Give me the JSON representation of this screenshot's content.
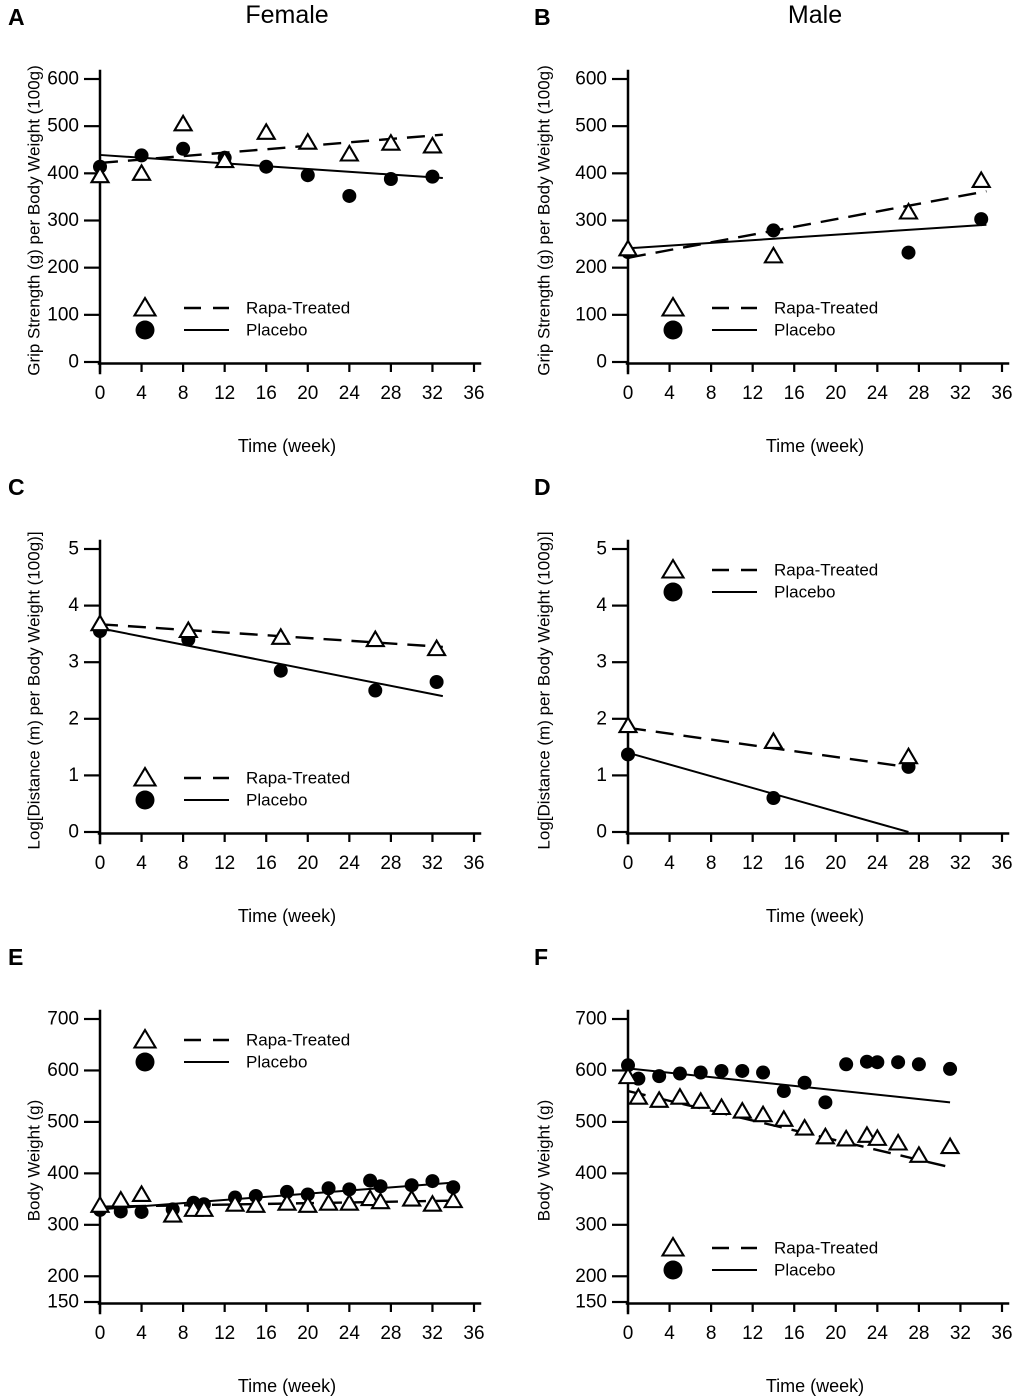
{
  "figure": {
    "background": "#ffffff",
    "foreground": "#000000",
    "column_titles": [
      "Female",
      "Male"
    ],
    "legend_labels": [
      "Rapa-Treated",
      "Placebo"
    ]
  },
  "chart_data": [
    {
      "panel": "A",
      "column_title": "Female",
      "type": "scatter",
      "xlabel": "Time (week)",
      "ylabel": "Grip Strength (g) per Body Weight (100g)",
      "xlim": [
        0,
        36
      ],
      "ylim": [
        0,
        600
      ],
      "xticks": [
        0,
        4,
        8,
        12,
        16,
        20,
        24,
        28,
        32,
        36
      ],
      "yticks": [
        0,
        100,
        200,
        300,
        400,
        500,
        600
      ],
      "grid": false,
      "legend_position": "bottom-left",
      "series": [
        {
          "name": "Rapa-Treated",
          "marker": "triangle",
          "line": "dashed",
          "points": [
            [
              0,
              395
            ],
            [
              4,
              400
            ],
            [
              8,
              505
            ],
            [
              12,
              427
            ],
            [
              16,
              487
            ],
            [
              20,
              466
            ],
            [
              24,
              441
            ],
            [
              28,
              464
            ],
            [
              32,
              458
            ]
          ],
          "trend": [
            [
              0,
              422
            ],
            [
              33,
              482
            ]
          ]
        },
        {
          "name": "Placebo",
          "marker": "circle",
          "line": "solid",
          "points": [
            [
              0,
              414
            ],
            [
              4,
              438
            ],
            [
              8,
              452
            ],
            [
              12,
              433
            ],
            [
              16,
              414
            ],
            [
              20,
              396
            ],
            [
              24,
              352
            ],
            [
              28,
              388
            ],
            [
              32,
              393
            ]
          ],
          "trend": [
            [
              0,
              439
            ],
            [
              33,
              390
            ]
          ]
        }
      ]
    },
    {
      "panel": "B",
      "column_title": "Male",
      "type": "scatter",
      "xlabel": "Time (week)",
      "ylabel": "Grip Strength (g) per Body Weight (100g)",
      "xlim": [
        0,
        36
      ],
      "ylim": [
        0,
        600
      ],
      "xticks": [
        0,
        4,
        8,
        12,
        16,
        20,
        24,
        28,
        32,
        36
      ],
      "yticks": [
        0,
        100,
        200,
        300,
        400,
        500,
        600
      ],
      "grid": false,
      "legend_position": "bottom-left",
      "series": [
        {
          "name": "Rapa-Treated",
          "marker": "triangle",
          "line": "dashed",
          "points": [
            [
              0,
              240
            ],
            [
              14,
              225
            ],
            [
              27,
              318
            ],
            [
              34,
              385
            ]
          ],
          "trend": [
            [
              0,
              221
            ],
            [
              34.5,
              362
            ]
          ]
        },
        {
          "name": "Placebo",
          "marker": "circle",
          "line": "solid",
          "points": [
            [
              0,
              233
            ],
            [
              14,
              279
            ],
            [
              27,
              232
            ],
            [
              34,
              303
            ]
          ],
          "trend": [
            [
              0,
              241
            ],
            [
              34.5,
              291
            ]
          ]
        }
      ]
    },
    {
      "panel": "C",
      "type": "scatter",
      "xlabel": "Time (week)",
      "ylabel": "Log[Distance (m) per Body Weight (100g)]",
      "xlim": [
        0,
        36
      ],
      "ylim": [
        0,
        5
      ],
      "xticks": [
        0,
        4,
        8,
        12,
        16,
        20,
        24,
        28,
        32,
        36
      ],
      "yticks": [
        0,
        1,
        2,
        3,
        4,
        5
      ],
      "grid": false,
      "legend_position": "bottom-left",
      "series": [
        {
          "name": "Rapa-Treated",
          "marker": "triangle",
          "line": "dashed",
          "points": [
            [
              0,
              3.68
            ],
            [
              8.5,
              3.56
            ],
            [
              17.4,
              3.44
            ],
            [
              26.5,
              3.4
            ],
            [
              32.4,
              3.24
            ]
          ],
          "trend": [
            [
              0,
              3.67
            ],
            [
              33,
              3.27
            ]
          ]
        },
        {
          "name": "Placebo",
          "marker": "circle",
          "line": "solid",
          "points": [
            [
              0,
              3.55
            ],
            [
              8.5,
              3.4
            ],
            [
              17.4,
              2.85
            ],
            [
              26.5,
              2.5
            ],
            [
              32.4,
              2.65
            ]
          ],
          "trend": [
            [
              0,
              3.6
            ],
            [
              33,
              2.4
            ]
          ]
        }
      ]
    },
    {
      "panel": "D",
      "type": "scatter",
      "xlabel": "Time (week)",
      "ylabel": "Log[Distance (m) per Body Weight (100g)]",
      "xlim": [
        0,
        36
      ],
      "ylim": [
        0,
        5
      ],
      "xticks": [
        0,
        4,
        8,
        12,
        16,
        20,
        24,
        28,
        32,
        36
      ],
      "yticks": [
        0,
        1,
        2,
        3,
        4,
        5
      ],
      "grid": false,
      "legend_position": "top-left",
      "series": [
        {
          "name": "Rapa-Treated",
          "marker": "triangle",
          "line": "dashed",
          "points": [
            [
              0,
              1.88
            ],
            [
              14,
              1.6
            ],
            [
              27,
              1.33
            ]
          ],
          "trend": [
            [
              0,
              1.84
            ],
            [
              27.6,
              1.13
            ]
          ]
        },
        {
          "name": "Placebo",
          "marker": "circle",
          "line": "solid",
          "points": [
            [
              0,
              1.37
            ],
            [
              14,
              0.6
            ],
            [
              27,
              1.15
            ]
          ],
          "trend": [
            [
              0,
              1.4
            ],
            [
              27,
              0
            ]
          ]
        }
      ]
    },
    {
      "panel": "E",
      "type": "scatter",
      "xlabel": "Time (week)",
      "ylabel": "Body Weight (g)",
      "xlim": [
        0,
        36
      ],
      "ylim": [
        150,
        700
      ],
      "xticks": [
        0,
        4,
        8,
        12,
        16,
        20,
        24,
        28,
        32,
        36
      ],
      "yticks": [
        150,
        200,
        300,
        400,
        500,
        600,
        700
      ],
      "grid": false,
      "legend_position": "top-left",
      "series": [
        {
          "name": "Rapa-Treated",
          "marker": "triangle",
          "line": "dashed",
          "points": [
            [
              0,
              338
            ],
            [
              2,
              348
            ],
            [
              4,
              359
            ],
            [
              7,
              319
            ],
            [
              9,
              330
            ],
            [
              10,
              330
            ],
            [
              13,
              340
            ],
            [
              15,
              338
            ],
            [
              18,
              342
            ],
            [
              20,
              338
            ],
            [
              22,
              342
            ],
            [
              24,
              342
            ],
            [
              26,
              351
            ],
            [
              27,
              345
            ],
            [
              30,
              350
            ],
            [
              32,
              340
            ],
            [
              34,
              347
            ]
          ],
          "trend": [
            [
              0,
              335
            ],
            [
              34,
              347
            ]
          ]
        },
        {
          "name": "Placebo",
          "marker": "circle",
          "line": "solid",
          "points": [
            [
              0,
              329
            ],
            [
              2,
              326
            ],
            [
              4,
              325
            ],
            [
              7,
              330
            ],
            [
              9,
              343
            ],
            [
              10,
              340
            ],
            [
              13,
              353
            ],
            [
              15,
              356
            ],
            [
              18,
              364
            ],
            [
              20,
              359
            ],
            [
              22,
              371
            ],
            [
              24,
              369
            ],
            [
              26,
              386
            ],
            [
              27,
              375
            ],
            [
              30,
              377
            ],
            [
              32,
              385
            ],
            [
              34,
              373
            ]
          ],
          "trend": [
            [
              0,
              330
            ],
            [
              34,
              382
            ]
          ]
        }
      ]
    },
    {
      "panel": "F",
      "type": "scatter",
      "xlabel": "Time (week)",
      "ylabel": "Body Weight (g)",
      "xlim": [
        0,
        36
      ],
      "ylim": [
        150,
        700
      ],
      "xticks": [
        0,
        4,
        8,
        12,
        16,
        20,
        24,
        28,
        32,
        36
      ],
      "yticks": [
        150,
        200,
        300,
        400,
        500,
        600,
        700
      ],
      "grid": false,
      "legend_position": "bottom-left",
      "series": [
        {
          "name": "Rapa-Treated",
          "marker": "triangle",
          "line": "dashed",
          "points": [
            [
              0,
              588
            ],
            [
              1,
              548
            ],
            [
              3,
              542
            ],
            [
              5,
              548
            ],
            [
              7,
              540
            ],
            [
              9,
              528
            ],
            [
              11,
              521
            ],
            [
              13,
              514
            ],
            [
              15,
              505
            ],
            [
              17,
              488
            ],
            [
              19,
              471
            ],
            [
              21,
              467
            ],
            [
              23,
              474
            ],
            [
              24,
              468
            ],
            [
              26,
              459
            ],
            [
              28,
              435
            ],
            [
              31,
              452
            ]
          ],
          "trend": [
            [
              0,
              560
            ],
            [
              31,
              412
            ]
          ]
        },
        {
          "name": "Placebo",
          "marker": "circle",
          "line": "solid",
          "points": [
            [
              0,
              610
            ],
            [
              1,
              584
            ],
            [
              3,
              589
            ],
            [
              5,
              594
            ],
            [
              7,
              596
            ],
            [
              9,
              599
            ],
            [
              11,
              599
            ],
            [
              13,
              596
            ],
            [
              15,
              560
            ],
            [
              17,
              576
            ],
            [
              19,
              538
            ],
            [
              21,
              612
            ],
            [
              23,
              617
            ],
            [
              24,
              616
            ],
            [
              26,
              616
            ],
            [
              28,
              612
            ],
            [
              31,
              603
            ]
          ],
          "trend": [
            [
              0,
              604
            ],
            [
              31,
              538
            ]
          ]
        }
      ]
    }
  ]
}
